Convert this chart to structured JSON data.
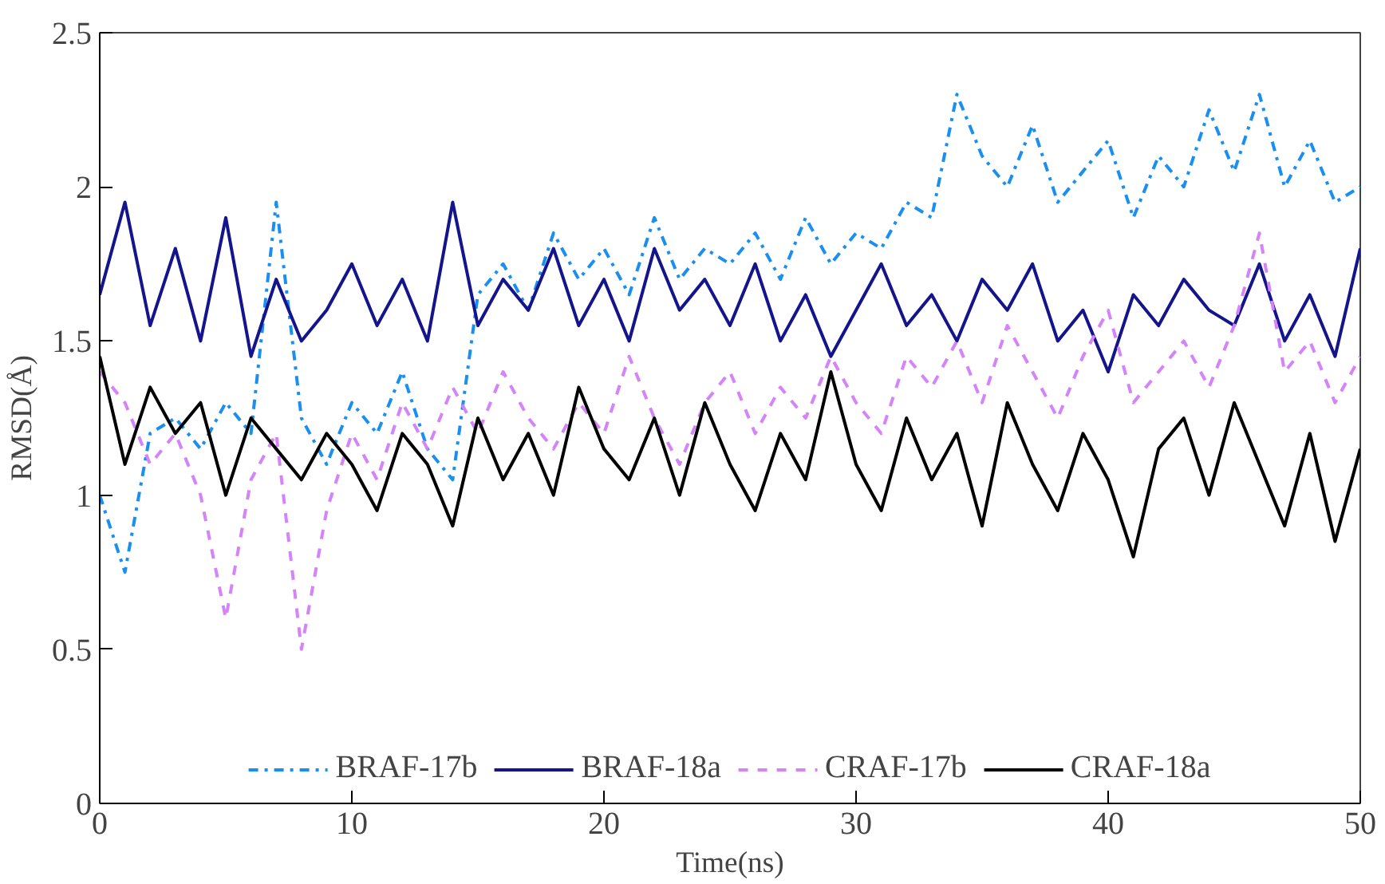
{
  "chart_data": {
    "type": "line",
    "xlabel": "Time(ns)",
    "ylabel": "RMSD(Å)",
    "x": [
      0,
      1,
      2,
      3,
      4,
      5,
      6,
      7,
      8,
      9,
      10,
      11,
      12,
      13,
      14,
      15,
      16,
      17,
      18,
      19,
      20,
      21,
      22,
      23,
      24,
      25,
      26,
      27,
      28,
      29,
      30,
      31,
      32,
      33,
      34,
      35,
      36,
      37,
      38,
      39,
      40,
      41,
      42,
      43,
      44,
      45,
      46,
      47,
      48,
      49,
      50
    ],
    "series": [
      {
        "name": "BRAF-17b",
        "color": "#1a8ff0",
        "line_style": "dashdot",
        "values": [
          1.0,
          0.75,
          1.2,
          1.25,
          1.15,
          1.3,
          1.2,
          1.95,
          1.25,
          1.1,
          1.3,
          1.2,
          1.4,
          1.15,
          1.05,
          1.65,
          1.75,
          1.6,
          1.85,
          1.7,
          1.8,
          1.65,
          1.9,
          1.7,
          1.8,
          1.75,
          1.85,
          1.7,
          1.9,
          1.75,
          1.85,
          1.8,
          1.95,
          1.9,
          2.3,
          2.1,
          2.0,
          2.2,
          1.95,
          2.05,
          2.15,
          1.9,
          2.1,
          2.0,
          2.25,
          2.05,
          2.3,
          2.0,
          2.15,
          1.95,
          2.0
        ]
      },
      {
        "name": "BRAF-18a",
        "color": "#14148c",
        "line_style": "solid",
        "values": [
          1.65,
          1.95,
          1.55,
          1.8,
          1.5,
          1.9,
          1.45,
          1.7,
          1.5,
          1.6,
          1.75,
          1.55,
          1.7,
          1.5,
          1.95,
          1.55,
          1.7,
          1.6,
          1.8,
          1.55,
          1.7,
          1.5,
          1.8,
          1.6,
          1.7,
          1.55,
          1.75,
          1.5,
          1.65,
          1.45,
          1.6,
          1.75,
          1.55,
          1.65,
          1.5,
          1.7,
          1.6,
          1.75,
          1.5,
          1.6,
          1.4,
          1.65,
          1.55,
          1.7,
          1.6,
          1.55,
          1.75,
          1.5,
          1.65,
          1.45,
          1.8
        ]
      },
      {
        "name": "CRAF-17b",
        "color": "#d484f8",
        "line_style": "dashed",
        "values": [
          1.4,
          1.3,
          1.1,
          1.2,
          1.0,
          0.6,
          1.05,
          1.2,
          0.5,
          0.95,
          1.2,
          1.05,
          1.3,
          1.15,
          1.35,
          1.2,
          1.4,
          1.25,
          1.15,
          1.3,
          1.2,
          1.45,
          1.25,
          1.1,
          1.3,
          1.4,
          1.2,
          1.35,
          1.25,
          1.45,
          1.3,
          1.2,
          1.45,
          1.35,
          1.5,
          1.3,
          1.55,
          1.4,
          1.25,
          1.45,
          1.6,
          1.3,
          1.4,
          1.5,
          1.35,
          1.55,
          1.85,
          1.4,
          1.5,
          1.3,
          1.45
        ]
      },
      {
        "name": "CRAF-18a",
        "color": "#000000",
        "line_style": "solid",
        "values": [
          1.45,
          1.1,
          1.35,
          1.2,
          1.3,
          1.0,
          1.25,
          1.15,
          1.05,
          1.2,
          1.1,
          0.95,
          1.2,
          1.1,
          0.9,
          1.25,
          1.05,
          1.2,
          1.0,
          1.35,
          1.15,
          1.05,
          1.25,
          1.0,
          1.3,
          1.1,
          0.95,
          1.2,
          1.05,
          1.4,
          1.1,
          0.95,
          1.25,
          1.05,
          1.2,
          0.9,
          1.3,
          1.1,
          0.95,
          1.2,
          1.05,
          0.8,
          1.15,
          1.25,
          1.0,
          1.3,
          1.1,
          0.9,
          1.2,
          0.85,
          1.15
        ]
      }
    ],
    "xlim": [
      0,
      50
    ],
    "xticks": [
      0,
      10,
      20,
      30,
      40,
      50
    ],
    "ylim": [
      0,
      2.5
    ],
    "yticks": [
      0,
      0.5,
      1,
      1.5,
      2,
      2.5
    ],
    "legend": "bottom",
    "grid": false
  }
}
